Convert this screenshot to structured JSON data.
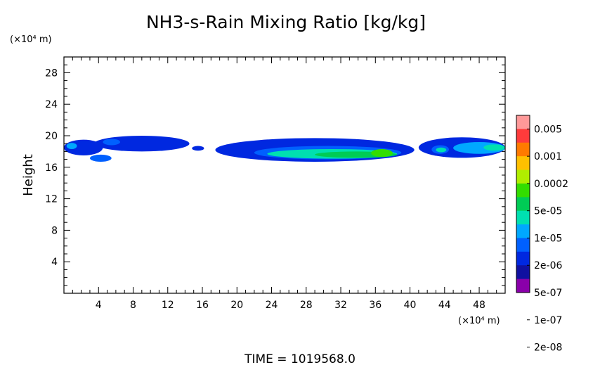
{
  "chart_data": {
    "type": "heatmap",
    "title": "NH3-s-Rain Mixing Ratio [kg/kg]",
    "ylabel": "Height",
    "y_unit": "(×10⁴ m)",
    "x_unit": "(×10⁴ m)",
    "xlim": [
      0,
      51
    ],
    "ylim": [
      0,
      30
    ],
    "x_ticks": [
      "4",
      "8",
      "12",
      "16",
      "20",
      "24",
      "28",
      "32",
      "36",
      "40",
      "44",
      "48"
    ],
    "y_ticks": [
      "4",
      "8",
      "12",
      "16",
      "20",
      "24",
      "28"
    ],
    "colorbar": {
      "labels": [
        "0.005",
        "0.001",
        "0.0002",
        "5e-05",
        "1e-05",
        "2e-06",
        "5e-07",
        "1e-07",
        "2e-08"
      ],
      "colors": [
        "#ff9999",
        "#ff3b3b",
        "#ff7a00",
        "#ffc000",
        "#b0ee00",
        "#33dd00",
        "#00cc55",
        "#00e0b0",
        "#00a8ff",
        "#0060ff",
        "#0028e0",
        "#1010a0",
        "#8a00aa"
      ]
    },
    "time_label": "TIME  =  1019568.0",
    "regions": [
      {
        "level": 2,
        "x": [
          0,
          4.5
        ],
        "y": [
          17.5,
          19.5
        ]
      },
      {
        "level": 4,
        "x": [
          0.3,
          1.5
        ],
        "y": [
          18.3,
          19.1
        ]
      },
      {
        "level": 3,
        "x": [
          3.0,
          5.5
        ],
        "y": [
          16.7,
          17.6
        ]
      },
      {
        "level": 2,
        "x": [
          3.5,
          14.5
        ],
        "y": [
          18.0,
          20.0
        ]
      },
      {
        "level": 3,
        "x": [
          4.5,
          6.5
        ],
        "y": [
          18.8,
          19.6
        ]
      },
      {
        "level": 2,
        "x": [
          14.8,
          16.2
        ],
        "y": [
          18.1,
          18.7
        ]
      },
      {
        "level": 2,
        "x": [
          17.5,
          40.5
        ],
        "y": [
          16.7,
          19.7
        ]
      },
      {
        "level": 3,
        "x": [
          22.0,
          39.0
        ],
        "y": [
          17.0,
          18.7
        ]
      },
      {
        "level": 5,
        "x": [
          23.5,
          38.5
        ],
        "y": [
          17.1,
          18.3
        ]
      },
      {
        "level": 6,
        "x": [
          29.0,
          38.5
        ],
        "y": [
          17.2,
          18.0
        ]
      },
      {
        "level": 7,
        "x": [
          35.5,
          38.0
        ],
        "y": [
          17.3,
          18.3
        ]
      },
      {
        "level": 2,
        "x": [
          41.0,
          51.0
        ],
        "y": [
          17.2,
          19.8
        ]
      },
      {
        "level": 3,
        "x": [
          42.5,
          44.5
        ],
        "y": [
          17.7,
          18.8
        ]
      },
      {
        "level": 5,
        "x": [
          43.0,
          44.2
        ],
        "y": [
          17.9,
          18.5
        ]
      },
      {
        "level": 4,
        "x": [
          45.0,
          51.0
        ],
        "y": [
          17.7,
          19.2
        ]
      },
      {
        "level": 5,
        "x": [
          48.5,
          51.0
        ],
        "y": [
          18.1,
          18.9
        ]
      }
    ]
  }
}
